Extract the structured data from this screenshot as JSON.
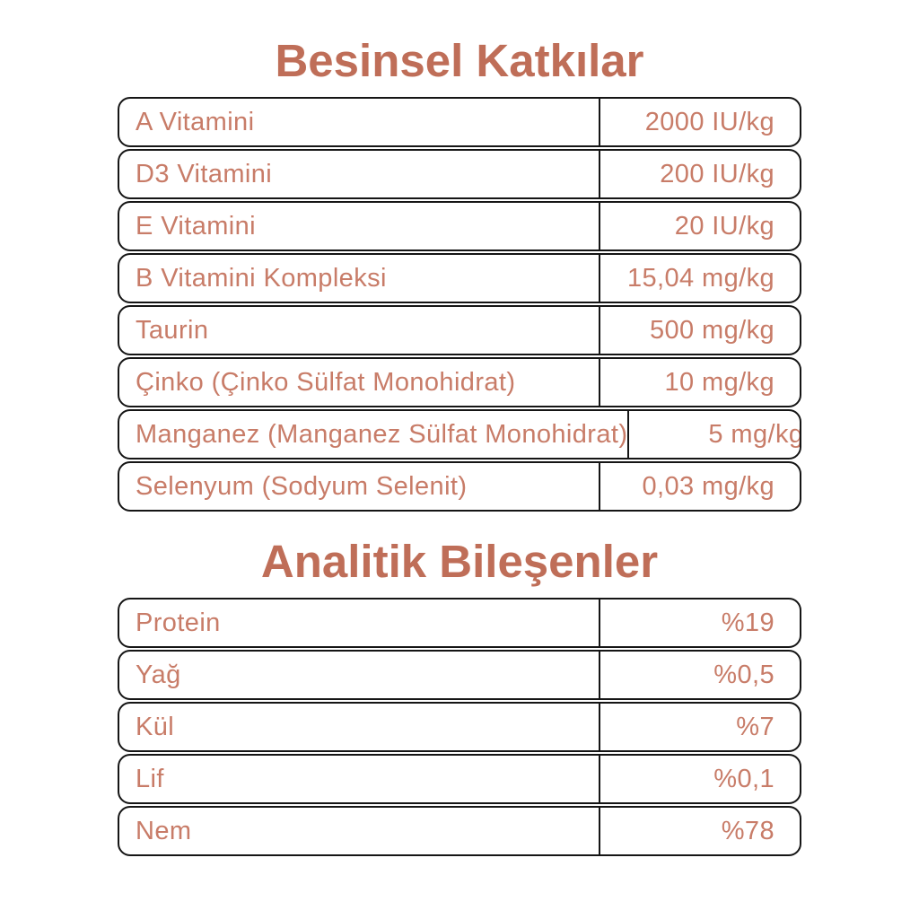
{
  "colors": {
    "title": "#bf6e58",
    "cell_text": "#c87c68",
    "border": "#151515",
    "background": "#ffffff"
  },
  "sections": [
    {
      "title": "Besinsel Katkılar",
      "rows": [
        {
          "label": "A Vitamini",
          "value": "2000 IU/kg"
        },
        {
          "label": "D3 Vitamini",
          "value": "200 IU/kg"
        },
        {
          "label": "E Vitamini",
          "value": "20 IU/kg"
        },
        {
          "label": "B Vitamini Kompleksi",
          "value": "15,04 mg/kg"
        },
        {
          "label": "Taurin",
          "value": "500 mg/kg"
        },
        {
          "label": "Çinko (Çinko Sülfat Monohidrat)",
          "value": "10 mg/kg"
        },
        {
          "label": "Manganez (Manganez Sülfat Monohidrat)",
          "value": "5 mg/kg"
        },
        {
          "label": "Selenyum (Sodyum Selenit)",
          "value": "0,03 mg/kg"
        }
      ]
    },
    {
      "title": "Analitik Bileşenler",
      "rows": [
        {
          "label": "Protein",
          "value": "%19"
        },
        {
          "label": "Yağ",
          "value": "%0,5"
        },
        {
          "label": "Kül",
          "value": "%7"
        },
        {
          "label": "Lif",
          "value": "%0,1"
        },
        {
          "label": "Nem",
          "value": "%78"
        }
      ]
    }
  ]
}
